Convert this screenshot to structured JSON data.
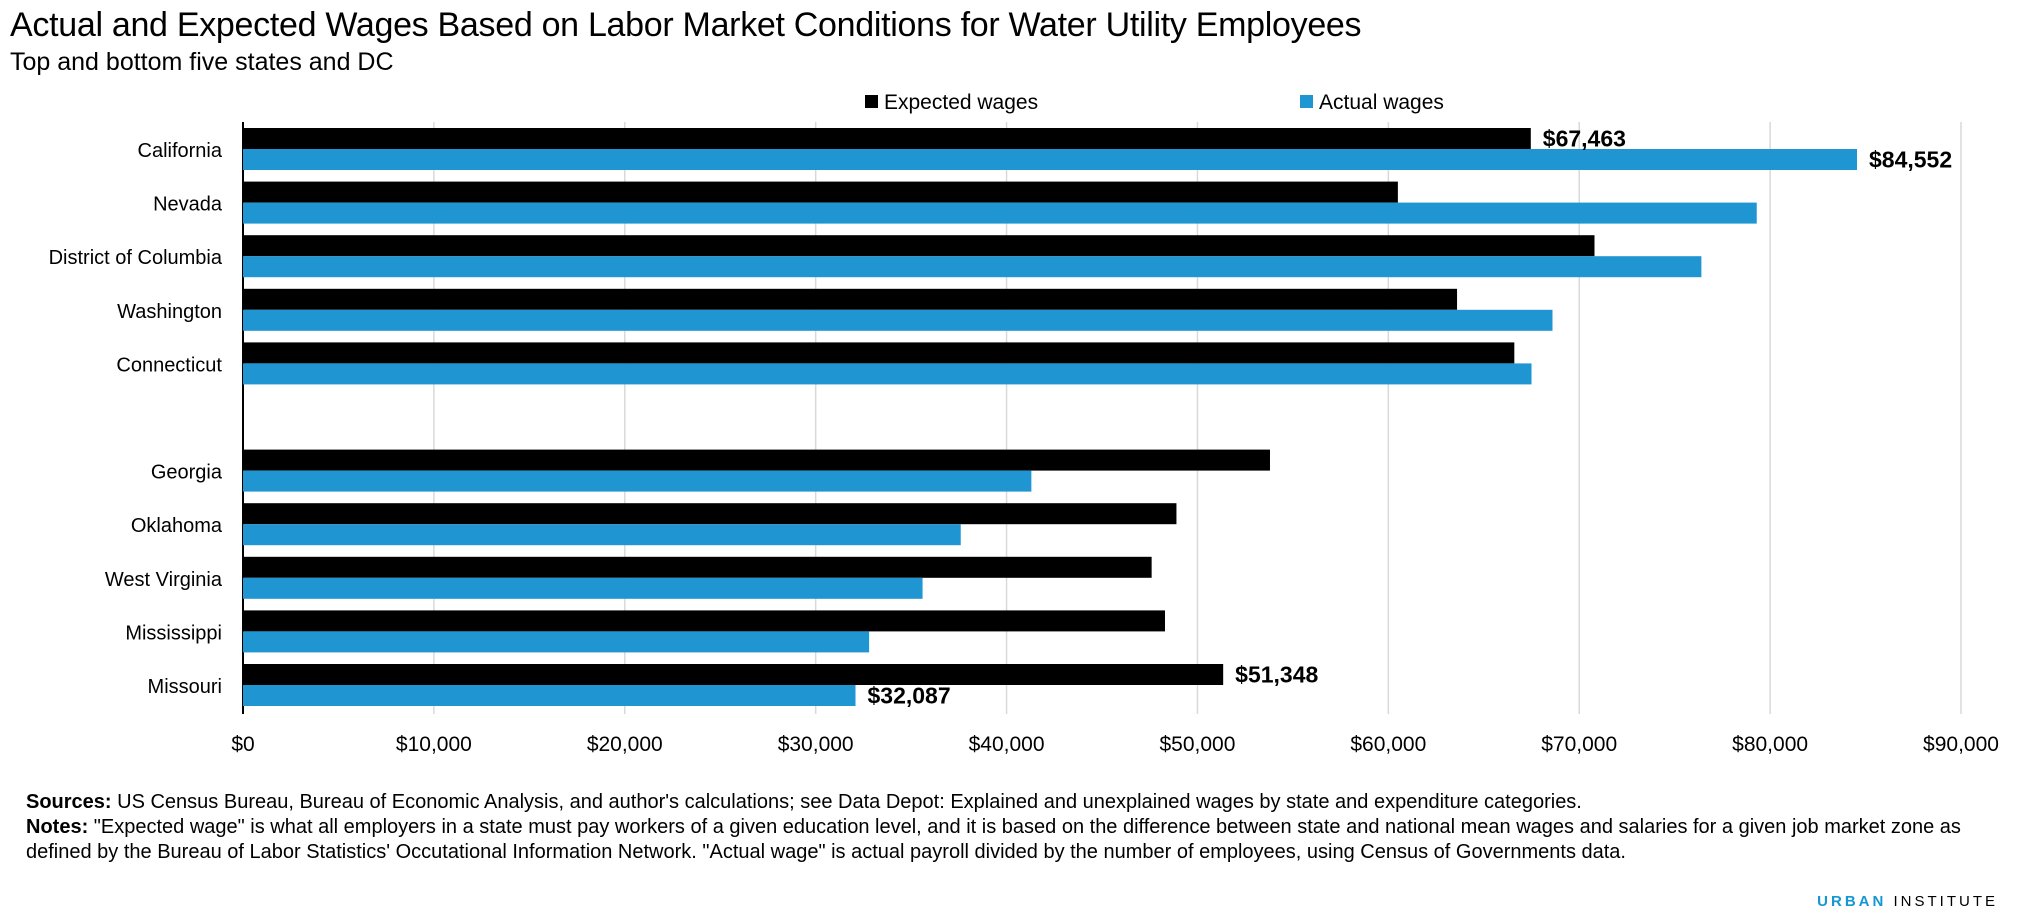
{
  "title": "Actual and Expected Wages Based on Labor Market Conditions for Water Utility Employees",
  "subtitle": "Top and bottom five states and DC",
  "colors": {
    "expected": "#000000",
    "actual": "#1f96d2",
    "grid": "#d9d9d9"
  },
  "chart_data": {
    "type": "bar",
    "orientation": "horizontal",
    "title": "Actual and Expected Wages Based on Labor Market Conditions for Water Utility Employees",
    "categories": [
      "California",
      "Nevada",
      "District of Columbia",
      "Washington",
      "Connecticut",
      "",
      "Georgia",
      "Oklahoma",
      "West Virginia",
      "Mississippi",
      "Missouri"
    ],
    "series": [
      {
        "name": "Expected wages",
        "values": [
          67463,
          60500,
          70800,
          63600,
          66600,
          null,
          53800,
          48900,
          47600,
          48300,
          51348
        ]
      },
      {
        "name": "Actual wages",
        "values": [
          84552,
          79300,
          76400,
          68600,
          67500,
          null,
          41300,
          37600,
          35600,
          32800,
          32087
        ]
      }
    ],
    "data_labels": [
      {
        "series": "Expected wages",
        "category": "California",
        "text": "$67,463"
      },
      {
        "series": "Actual wages",
        "category": "California",
        "text": "$84,552"
      },
      {
        "series": "Expected wages",
        "category": "Missouri",
        "text": "$51,348"
      },
      {
        "series": "Actual wages",
        "category": "Missouri",
        "text": "$32,087"
      }
    ],
    "xlim": [
      0,
      90000
    ],
    "xticks": [
      0,
      10000,
      20000,
      30000,
      40000,
      50000,
      60000,
      70000,
      80000,
      90000
    ],
    "xtick_labels": [
      "$0",
      "$10,000",
      "$20,000",
      "$30,000",
      "$40,000",
      "$50,000",
      "$60,000",
      "$70,000",
      "$80,000",
      "$90,000"
    ],
    "grid": "vertical",
    "legend": "top"
  },
  "notes": {
    "sources_label": "Sources:",
    "sources_text": " US Census Bureau, Bureau of Economic Analysis, and author's calculations; see Data Depot: Explained and  unexplained wages by state and expenditure categories.",
    "notes_label": "Notes:",
    "notes_text": " \"Expected wage\" is what all employers in a state must pay workers of a given education level, and it is based on the difference between state and national mean wages and salaries for a given job market zone as defined by the Bureau of Labor Statistics' Occutational Information Network. \"Actual wage\" is actual payroll divided by the number of employees, using Census of Governments data."
  },
  "brand": {
    "bold": "URBAN",
    "light": " INSTITUTE"
  }
}
